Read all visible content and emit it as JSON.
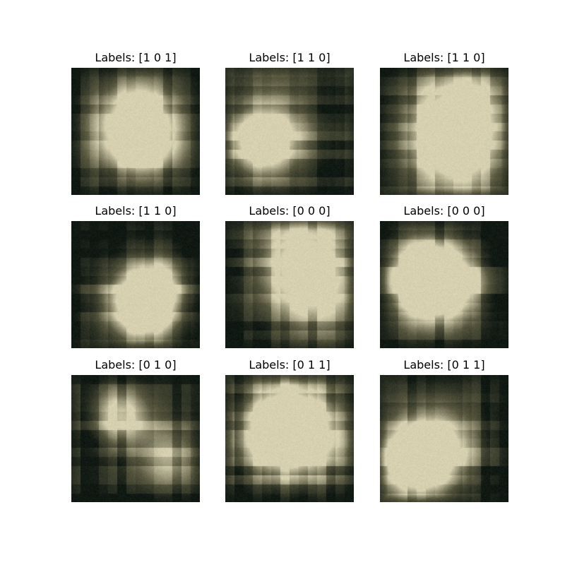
{
  "figure": {
    "panels": [
      {
        "title": "Labels: [1 0 1]",
        "labels": [
          1,
          0,
          1
        ]
      },
      {
        "title": "Labels: [1 1 0]",
        "labels": [
          1,
          1,
          0
        ]
      },
      {
        "title": "Labels: [1 1 0]",
        "labels": [
          1,
          1,
          0
        ]
      },
      {
        "title": "Labels: [1 1 0]",
        "labels": [
          1,
          1,
          0
        ]
      },
      {
        "title": "Labels: [0 0 0]",
        "labels": [
          0,
          0,
          0
        ]
      },
      {
        "title": "Labels: [0 0 0]",
        "labels": [
          0,
          0,
          0
        ]
      },
      {
        "title": "Labels: [0 1 0]",
        "labels": [
          0,
          1,
          0
        ]
      },
      {
        "title": "Labels: [0 1 1]",
        "labels": [
          0,
          1,
          1
        ]
      },
      {
        "title": "Labels: [0 1 1]",
        "labels": [
          0,
          1,
          1
        ]
      }
    ],
    "colors": {
      "dark": "#0c1410",
      "mid": "#5a5840",
      "light": "#e4dcbc",
      "tint": "#3c4a32"
    }
  }
}
